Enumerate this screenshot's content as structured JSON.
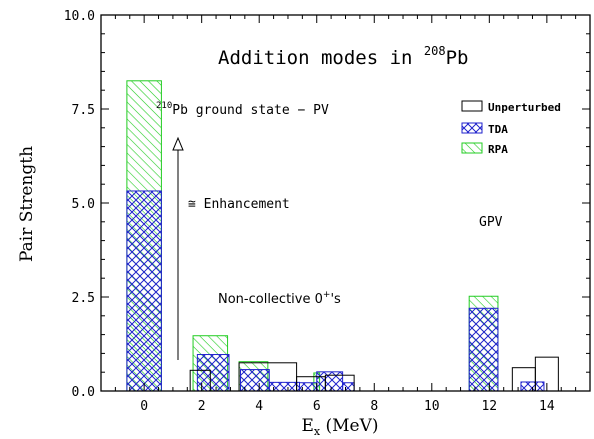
{
  "chart_data": {
    "type": "bar",
    "title_main": "Addition modes in ",
    "title_sup": "208",
    "title_end": "Pb",
    "xlabel_main": "E",
    "xlabel_sub": "x",
    "xlabel_unit": " (MeV)",
    "ylabel": "Pair Strength",
    "xlim": [
      -1.5,
      15.5
    ],
    "ylim": [
      0,
      10
    ],
    "xticks": [
      "0",
      "2",
      "4",
      "6",
      "8",
      "10",
      "12",
      "14"
    ],
    "yticks": [
      "0.0",
      "2.5",
      "5.0",
      "7.5",
      "10.0"
    ],
    "legend_position": "top-right",
    "colors": {
      "unperturbed": "#000000",
      "tda": "#1f22cc",
      "rpa": "#22cc22"
    },
    "series": [
      {
        "name": "Unperturbed",
        "bars": [
          {
            "x": [
              1.6,
              2.3
            ],
            "y": 0.55
          },
          {
            "x": [
              3.3,
              5.3
            ],
            "y": 0.75
          },
          {
            "x": [
              5.3,
              6.3
            ],
            "y": 0.38
          },
          {
            "x": [
              6.3,
              7.3
            ],
            "y": 0.42
          },
          {
            "x": [
              12.8,
              13.6
            ],
            "y": 0.62
          },
          {
            "x": [
              13.6,
              14.4
            ],
            "y": 0.9
          }
        ]
      },
      {
        "name": "TDA",
        "bars": [
          {
            "x": [
              -0.6,
              0.6
            ],
            "y": 5.32
          },
          {
            "x": [
              1.85,
              2.95
            ],
            "y": 0.97
          },
          {
            "x": [
              3.35,
              4.35
            ],
            "y": 0.57
          },
          {
            "x": [
              4.35,
              5.4
            ],
            "y": 0.23
          },
          {
            "x": [
              5.4,
              6.0
            ],
            "y": 0.22
          },
          {
            "x": [
              6.0,
              6.9
            ],
            "y": 0.51
          },
          {
            "x": [
              6.9,
              7.3
            ],
            "y": 0.22
          },
          {
            "x": [
              11.3,
              12.3
            ],
            "y": 2.2
          },
          {
            "x": [
              13.1,
              13.9
            ],
            "y": 0.24
          }
        ]
      },
      {
        "name": "RPA",
        "bars": [
          {
            "x": [
              -0.6,
              0.6
            ],
            "y": 8.25
          },
          {
            "x": [
              1.7,
              2.9
            ],
            "y": 1.47
          },
          {
            "x": [
              3.3,
              4.3
            ],
            "y": 0.78
          },
          {
            "x": [
              5.9,
              6.1
            ],
            "y": 0.48
          },
          {
            "x": [
              11.3,
              12.3
            ],
            "y": 2.52
          }
        ]
      }
    ],
    "annotations": {
      "ground_state_sup": "210",
      "ground_state_text": "Pb ground state − PV",
      "enhancement": "≅ Enhancement",
      "gpv": "GPV",
      "noncollective_main": "Non-collective 0",
      "noncollective_sup": "+",
      "noncollective_end": "'s"
    }
  }
}
